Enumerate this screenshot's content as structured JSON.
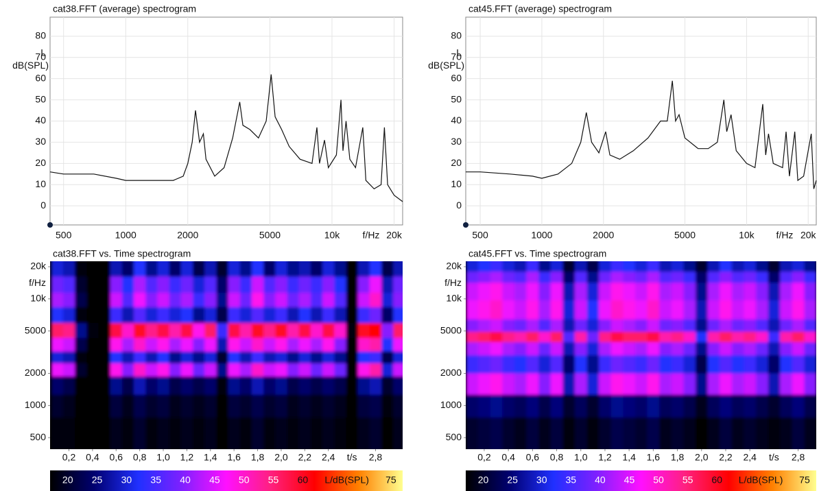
{
  "chart_data": [
    {
      "type": "line",
      "title": "cat38.FFT (average) spectrogram",
      "ylabel_top": "L",
      "ylabel": "dB(SPL)",
      "xlabel": "f/Hz",
      "xscale": "log",
      "color": "#111111",
      "xlim": [
        430,
        22000
      ],
      "ylim": [
        -9,
        89
      ],
      "xticks": [
        500,
        1000,
        2000,
        5000,
        {
          "value": 10000,
          "label": "10k"
        },
        {
          "value": 20000,
          "label": "20k"
        }
      ],
      "yticks": [
        0,
        10,
        20,
        30,
        40,
        50,
        60,
        70,
        80
      ],
      "x": [
        430,
        500,
        700,
        900,
        1000,
        1300,
        1700,
        1900,
        2000,
        2100,
        2180,
        2280,
        2380,
        2450,
        2700,
        3000,
        3300,
        3570,
        3700,
        4000,
        4400,
        4800,
        5070,
        5300,
        5700,
        6200,
        7000,
        8000,
        8450,
        8700,
        9200,
        9600,
        10500,
        11050,
        11300,
        11700,
        12200,
        13000,
        14100,
        14600,
        16000,
        17300,
        17950,
        18600,
        20000,
        22000
      ],
      "values": [
        16,
        15,
        15,
        13,
        12,
        12,
        12,
        14,
        20,
        30,
        45,
        30,
        34,
        22,
        14,
        18,
        32,
        49,
        38,
        36,
        32,
        40,
        62,
        42,
        36,
        28,
        22,
        20,
        37,
        20,
        31,
        18,
        24,
        50,
        26,
        40,
        22,
        18,
        37,
        12,
        8,
        10,
        37,
        10,
        5,
        2
      ]
    },
    {
      "type": "heatmap",
      "title": "cat38.FFT vs. Time spectrogram",
      "ylabel": "f/Hz",
      "xlabel": "t/s",
      "yscale": "log",
      "xlim": [
        0.04,
        3.03
      ],
      "ylim": [
        390,
        22500
      ],
      "xticks": [
        {
          "value": 0.2,
          "label": "0,2"
        },
        {
          "value": 0.4,
          "label": "0,4"
        },
        {
          "value": 0.6,
          "label": "0,6"
        },
        {
          "value": 0.8,
          "label": "0,8"
        },
        {
          "value": 1.0,
          "label": "1,0"
        },
        {
          "value": 1.2,
          "label": "1,2"
        },
        {
          "value": 1.4,
          "label": "1,4"
        },
        {
          "value": 1.6,
          "label": "1,6"
        },
        {
          "value": 1.8,
          "label": "1,8"
        },
        {
          "value": 2.0,
          "label": "2,0"
        },
        {
          "value": 2.2,
          "label": "2,2"
        },
        {
          "value": 2.4,
          "label": "2,4"
        },
        {
          "value": 2.8,
          "label": "2,8"
        }
      ],
      "yticks": [
        500,
        1000,
        2000,
        5000,
        {
          "value": 10000,
          "label": "10k"
        },
        {
          "value": 20000,
          "label": "20k"
        }
      ],
      "x": [
        0.1,
        0.2,
        0.3,
        0.4,
        0.5,
        0.6,
        0.7,
        0.8,
        0.9,
        1.0,
        1.1,
        1.2,
        1.3,
        1.4,
        1.5,
        1.6,
        1.7,
        1.8,
        1.9,
        2.0,
        2.1,
        2.2,
        2.3,
        2.4,
        2.5,
        2.6,
        2.7,
        2.8,
        2.9,
        3.0
      ],
      "y": [
        20000,
        13000,
        10000,
        7000,
        5000,
        3700,
        2800,
        2200,
        1600,
        1000,
        600
      ],
      "z": [
        [
          30,
          28,
          18,
          15,
          15,
          28,
          24,
          32,
          26,
          30,
          24,
          30,
          22,
          28,
          20,
          30,
          26,
          32,
          24,
          30,
          26,
          28,
          24,
          30,
          26,
          15,
          28,
          32,
          22,
          28
        ],
        [
          38,
          36,
          20,
          16,
          16,
          40,
          32,
          42,
          36,
          40,
          34,
          38,
          30,
          36,
          24,
          40,
          34,
          44,
          36,
          40,
          34,
          38,
          34,
          40,
          32,
          16,
          40,
          46,
          28,
          38
        ],
        [
          42,
          40,
          22,
          16,
          16,
          44,
          36,
          46,
          40,
          44,
          38,
          42,
          34,
          40,
          26,
          44,
          38,
          48,
          40,
          44,
          38,
          42,
          36,
          44,
          36,
          16,
          44,
          50,
          30,
          40
        ],
        [
          32,
          30,
          18,
          15,
          15,
          34,
          28,
          36,
          30,
          34,
          30,
          32,
          26,
          30,
          22,
          34,
          30,
          36,
          30,
          34,
          28,
          32,
          28,
          34,
          28,
          15,
          34,
          38,
          24,
          32
        ],
        [
          56,
          54,
          26,
          18,
          17,
          58,
          50,
          60,
          54,
          58,
          52,
          58,
          48,
          56,
          34,
          58,
          52,
          60,
          54,
          60,
          52,
          58,
          50,
          58,
          50,
          18,
          60,
          62,
          40,
          56
        ],
        [
          46,
          44,
          22,
          16,
          16,
          48,
          42,
          50,
          44,
          48,
          42,
          46,
          40,
          46,
          28,
          48,
          44,
          50,
          44,
          48,
          42,
          46,
          42,
          48,
          40,
          16,
          50,
          52,
          32,
          46
        ],
        [
          30,
          28,
          18,
          15,
          15,
          32,
          28,
          34,
          28,
          32,
          26,
          30,
          26,
          30,
          20,
          32,
          28,
          34,
          28,
          30,
          26,
          30,
          26,
          30,
          26,
          15,
          32,
          34,
          22,
          30
        ],
        [
          46,
          44,
          20,
          16,
          16,
          48,
          40,
          50,
          44,
          48,
          40,
          46,
          38,
          44,
          26,
          46,
          42,
          50,
          44,
          46,
          40,
          44,
          38,
          44,
          38,
          16,
          48,
          52,
          30,
          44
        ],
        [
          24,
          22,
          17,
          15,
          15,
          26,
          22,
          28,
          24,
          26,
          22,
          24,
          22,
          24,
          18,
          26,
          24,
          28,
          24,
          26,
          22,
          24,
          22,
          24,
          22,
          15,
          26,
          28,
          20,
          24
        ],
        [
          20,
          19,
          16,
          15,
          15,
          21,
          19,
          22,
          20,
          21,
          19,
          20,
          19,
          20,
          17,
          21,
          20,
          22,
          20,
          21,
          19,
          20,
          19,
          20,
          19,
          15,
          21,
          22,
          18,
          20
        ],
        [
          18,
          18,
          16,
          15,
          15,
          19,
          18,
          20,
          18,
          19,
          18,
          19,
          18,
          19,
          17,
          19,
          18,
          20,
          18,
          19,
          18,
          19,
          18,
          19,
          18,
          15,
          19,
          20,
          17,
          19
        ]
      ],
      "colorbar": {
        "label": "L/dB(SPL)",
        "lim": [
          17,
          77
        ],
        "ticks": [
          20,
          25,
          30,
          35,
          40,
          45,
          50,
          55,
          60,
          75
        ],
        "colors": [
          "#000000",
          "#000070",
          "#2030ff",
          "#8020ff",
          "#ff10ff",
          "#ff2080",
          "#ff0000",
          "#ff8000",
          "#ffff90"
        ]
      }
    },
    {
      "type": "line",
      "title": "cat45.FFT (average) spectrogram",
      "ylabel_top": "L",
      "ylabel": "dB(SPL)",
      "xlabel": "f/Hz",
      "xscale": "log",
      "color": "#111111",
      "xlim": [
        425,
        21900
      ],
      "ylim": [
        -9,
        89
      ],
      "xticks": [
        500,
        1000,
        2000,
        5000,
        {
          "value": 10000,
          "label": "10k"
        },
        {
          "value": 20000,
          "label": "20k"
        }
      ],
      "yticks": [
        0,
        10,
        20,
        30,
        40,
        50,
        60,
        70,
        80
      ],
      "x": [
        425,
        500,
        700,
        900,
        1000,
        1200,
        1400,
        1550,
        1650,
        1750,
        1900,
        2050,
        2150,
        2400,
        2800,
        3300,
        3800,
        4100,
        4340,
        4500,
        4680,
        5000,
        5800,
        6500,
        7200,
        7750,
        8000,
        8400,
        8900,
        10000,
        11000,
        12000,
        12400,
        12800,
        13500,
        15000,
        15600,
        16200,
        17200,
        17800,
        19000,
        20700,
        21300,
        21900
      ],
      "values": [
        16,
        16,
        15,
        14,
        13,
        15,
        20,
        30,
        44,
        30,
        25,
        35,
        24,
        22,
        26,
        32,
        40,
        40,
        59,
        40,
        43,
        32,
        27,
        27,
        30,
        50,
        35,
        43,
        26,
        20,
        18,
        48,
        24,
        34,
        20,
        18,
        35,
        14,
        35,
        12,
        14,
        34,
        8,
        12
      ]
    },
    {
      "type": "heatmap",
      "title": "cat45.FFT vs. Time spectrogram",
      "ylabel": "f/Hz",
      "xlabel": "t/s",
      "yscale": "log",
      "xlim": [
        0.047,
        2.95
      ],
      "ylim": [
        390,
        22500
      ],
      "xticks": [
        {
          "value": 0.2,
          "label": "0,2"
        },
        {
          "value": 0.4,
          "label": "0,4"
        },
        {
          "value": 0.6,
          "label": "0,6"
        },
        {
          "value": 0.8,
          "label": "0,8"
        },
        {
          "value": 1.0,
          "label": "1,0"
        },
        {
          "value": 1.2,
          "label": "1,2"
        },
        {
          "value": 1.4,
          "label": "1,4"
        },
        {
          "value": 1.6,
          "label": "1,6"
        },
        {
          "value": 1.8,
          "label": "1,8"
        },
        {
          "value": 2.0,
          "label": "2,0"
        },
        {
          "value": 2.2,
          "label": "2,2"
        },
        {
          "value": 2.4,
          "label": "2,4"
        },
        {
          "value": 2.8,
          "label": "2,8"
        }
      ],
      "yticks": [
        500,
        1000,
        2000,
        5000,
        {
          "value": 10000,
          "label": "10k"
        },
        {
          "value": 20000,
          "label": "20k"
        }
      ],
      "x": [
        0.1,
        0.2,
        0.3,
        0.4,
        0.5,
        0.6,
        0.7,
        0.8,
        0.9,
        1.0,
        1.1,
        1.2,
        1.3,
        1.4,
        1.5,
        1.6,
        1.7,
        1.8,
        1.9,
        2.0,
        2.1,
        2.2,
        2.3,
        2.4,
        2.5,
        2.6,
        2.7,
        2.8,
        2.9
      ],
      "y": [
        20000,
        16000,
        12500,
        7500,
        5500,
        4400,
        3500,
        2500,
        1600,
        1000,
        600
      ],
      "z": [
        [
          30,
          32,
          34,
          30,
          28,
          34,
          26,
          30,
          20,
          28,
          22,
          30,
          34,
          32,
          30,
          34,
          28,
          30,
          26,
          20,
          28,
          32,
          28,
          30,
          26,
          20,
          28,
          30,
          26
        ],
        [
          38,
          40,
          42,
          38,
          36,
          42,
          34,
          40,
          24,
          36,
          26,
          38,
          42,
          40,
          38,
          42,
          36,
          38,
          34,
          24,
          36,
          40,
          36,
          38,
          34,
          24,
          36,
          40,
          34
        ],
        [
          44,
          46,
          48,
          44,
          42,
          46,
          40,
          46,
          28,
          42,
          30,
          44,
          48,
          46,
          44,
          48,
          42,
          44,
          40,
          26,
          42,
          46,
          42,
          44,
          40,
          28,
          42,
          46,
          40
        ],
        [
          46,
          48,
          50,
          46,
          44,
          48,
          42,
          48,
          30,
          44,
          32,
          46,
          50,
          48,
          46,
          50,
          44,
          46,
          42,
          28,
          44,
          48,
          44,
          46,
          42,
          30,
          44,
          48,
          42
        ],
        [
          40,
          42,
          44,
          40,
          38,
          42,
          36,
          42,
          28,
          38,
          30,
          40,
          44,
          42,
          40,
          44,
          38,
          40,
          36,
          26,
          38,
          42,
          38,
          40,
          36,
          28,
          38,
          42,
          36
        ],
        [
          54,
          56,
          58,
          54,
          52,
          56,
          50,
          56,
          36,
          52,
          38,
          54,
          58,
          56,
          56,
          58,
          52,
          54,
          50,
          32,
          52,
          56,
          52,
          54,
          50,
          34,
          52,
          56,
          50
        ],
        [
          42,
          44,
          46,
          42,
          40,
          44,
          38,
          44,
          28,
          40,
          30,
          42,
          46,
          44,
          42,
          46,
          40,
          42,
          38,
          26,
          40,
          44,
          40,
          42,
          38,
          28,
          40,
          44,
          38
        ],
        [
          34,
          36,
          38,
          34,
          32,
          36,
          30,
          36,
          24,
          32,
          26,
          34,
          38,
          36,
          34,
          38,
          32,
          34,
          30,
          22,
          32,
          36,
          32,
          34,
          30,
          24,
          32,
          36,
          30
        ],
        [
          44,
          46,
          48,
          44,
          42,
          46,
          40,
          46,
          28,
          42,
          30,
          44,
          48,
          46,
          44,
          48,
          42,
          44,
          40,
          26,
          42,
          46,
          42,
          44,
          40,
          28,
          42,
          46,
          40
        ],
        [
          24,
          25,
          26,
          24,
          23,
          25,
          22,
          25,
          20,
          23,
          20,
          24,
          26,
          25,
          24,
          26,
          23,
          24,
          22,
          19,
          23,
          25,
          23,
          24,
          22,
          20,
          23,
          25,
          22
        ],
        [
          20,
          21,
          22,
          20,
          19,
          21,
          19,
          21,
          18,
          20,
          18,
          20,
          22,
          21,
          20,
          22,
          19,
          20,
          19,
          17,
          19,
          21,
          19,
          20,
          19,
          18,
          19,
          21,
          19
        ]
      ],
      "colorbar": {
        "label": "L/dB(SPL)",
        "lim": [
          17,
          77
        ],
        "ticks": [
          20,
          25,
          30,
          35,
          40,
          45,
          50,
          55,
          60,
          75
        ],
        "colors": [
          "#000000",
          "#000070",
          "#2030ff",
          "#8020ff",
          "#ff10ff",
          "#ff2080",
          "#ff0000",
          "#ff8000",
          "#ffff90"
        ]
      }
    }
  ]
}
